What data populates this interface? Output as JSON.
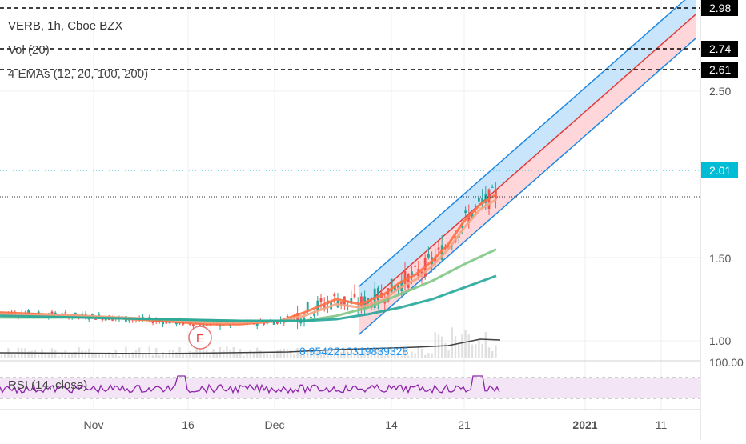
{
  "header": {
    "symbol": "VERB, 1h, Cboe BZX",
    "vol": "Vol (20)",
    "emas": "4 EMAs (12, 20, 100, 200)",
    "rsi": "RSI (14, close)"
  },
  "colors": {
    "candle_up": "#26a69a",
    "candle_down": "#ef5350",
    "ema12": "#ff7043",
    "ema20": "#f4a582",
    "ema100": "#81c784",
    "ema200": "#26a69a",
    "channel_upper_fill": "#bbdefb",
    "channel_lower_fill": "#ffcdd2",
    "rsi_line": "#8e24aa",
    "rsi_band": "#f3e5f5",
    "last_price_badge": "#00bcd4"
  },
  "chart_data": {
    "type": "line",
    "price_axis_ticks": [
      "2.50",
      "1.50",
      "1.00"
    ],
    "price_lines": [
      {
        "value": 2.98,
        "label": "2.98",
        "style": "dashed"
      },
      {
        "value": 2.74,
        "label": "2.74",
        "style": "dashed"
      },
      {
        "value": 2.61,
        "label": "2.61",
        "style": "dashed"
      },
      {
        "value": 2.01,
        "label": "2.01",
        "style": "dotted-last-price"
      }
    ],
    "dotted_support": 1.84,
    "x_tick_labels": [
      "Nov",
      "16",
      "Dec",
      "14",
      "21",
      "2021",
      "11"
    ],
    "ema_label": "E",
    "volume_ma_value": "0.9542210319839328",
    "rsi_axis_label": "100.00",
    "series": [
      {
        "name": "EMA 12",
        "x": [
          0,
          100,
          200,
          260,
          300,
          350,
          380,
          420,
          450,
          480,
          500,
          520,
          540,
          560,
          580,
          600,
          620
        ],
        "y": [
          1.17,
          1.15,
          1.12,
          1.1,
          1.1,
          1.12,
          1.17,
          1.25,
          1.22,
          1.28,
          1.35,
          1.4,
          1.48,
          1.58,
          1.72,
          1.82,
          1.88
        ]
      },
      {
        "name": "EMA 20",
        "x": [
          0,
          100,
          200,
          260,
          300,
          350,
          380,
          420,
          450,
          480,
          500,
          520,
          540,
          560,
          580,
          600,
          620
        ],
        "y": [
          1.16,
          1.15,
          1.13,
          1.11,
          1.11,
          1.12,
          1.15,
          1.22,
          1.2,
          1.25,
          1.32,
          1.37,
          1.45,
          1.55,
          1.68,
          1.79,
          1.85
        ]
      },
      {
        "name": "EMA 100",
        "x": [
          0,
          100,
          200,
          300,
          380,
          420,
          460,
          500,
          540,
          580,
          620
        ],
        "y": [
          1.14,
          1.14,
          1.13,
          1.12,
          1.12,
          1.15,
          1.2,
          1.28,
          1.36,
          1.46,
          1.55
        ]
      },
      {
        "name": "EMA 200",
        "x": [
          0,
          100,
          200,
          300,
          380,
          420,
          460,
          500,
          540,
          580,
          620
        ],
        "y": [
          1.15,
          1.14,
          1.13,
          1.12,
          1.12,
          1.13,
          1.16,
          1.2,
          1.25,
          1.32,
          1.39
        ]
      }
    ]
  }
}
